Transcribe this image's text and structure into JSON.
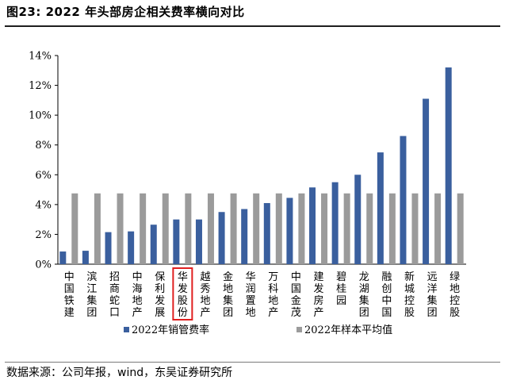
{
  "figure_title": "图23:  2022 年头部房企相关费率横向对比",
  "source": "数据来源：公司年报，wind，东吴证券研究所",
  "colors": {
    "series_1": "#3a5f9e",
    "series_2": "#9b9b9b",
    "highlight_box": "#e02020"
  },
  "chart_data": {
    "type": "bar",
    "categories": [
      "中国铁建",
      "滨江集团",
      "招商蛇口",
      "中海地产",
      "保利发展",
      "华发股份",
      "越秀地产",
      "金地集团",
      "华润置地",
      "万科地产",
      "中国金茂",
      "建发房产",
      "碧桂园",
      "龙湖集团",
      "融创中国",
      "新城控股",
      "远洋集团",
      "绿地控股"
    ],
    "series": [
      {
        "name": "2022年销管费率",
        "values": [
          0.85,
          0.9,
          2.15,
          2.2,
          2.65,
          3.0,
          3.0,
          3.5,
          3.7,
          4.1,
          4.45,
          5.15,
          5.5,
          6.0,
          7.5,
          8.6,
          11.1,
          13.2
        ]
      },
      {
        "name": "2022年样本平均值",
        "values": [
          4.75,
          4.75,
          4.75,
          4.75,
          4.75,
          4.75,
          4.75,
          4.75,
          4.75,
          4.75,
          4.75,
          4.75,
          4.75,
          4.75,
          4.75,
          4.75,
          4.75,
          4.75
        ]
      }
    ],
    "y_ticks": [
      "0%",
      "2%",
      "4%",
      "6%",
      "8%",
      "10%",
      "12%",
      "14%"
    ],
    "ylim": [
      0,
      14
    ],
    "highlighted_category": "华发股份",
    "grid": false,
    "legend_position": "bottom"
  }
}
